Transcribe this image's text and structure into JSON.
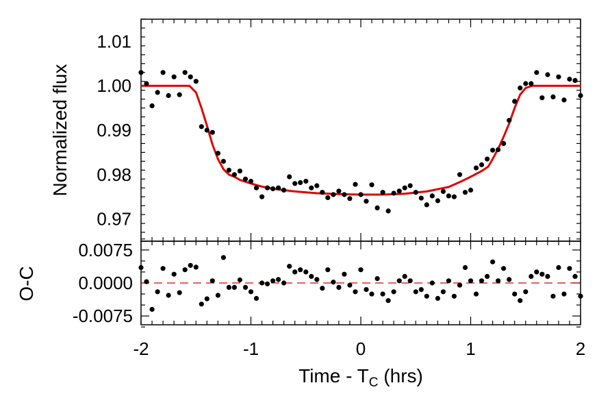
{
  "chart_data": [
    {
      "type": "scatter",
      "panel": "top",
      "xlim": [
        -2,
        2
      ],
      "ylim": [
        0.965,
        1.015
      ],
      "ylabel": "Normalized flux",
      "ytick_labels": [
        "0.97",
        "0.98",
        "0.99",
        "1.00",
        "1.01"
      ],
      "ytick_values": [
        0.97,
        0.98,
        0.99,
        1.0,
        1.01
      ],
      "colors": {
        "points": "#000000",
        "model": "#e00000"
      },
      "series": [
        {
          "kind": "points",
          "x": [
            -2.0,
            -1.95,
            -1.9,
            -1.85,
            -1.8,
            -1.75,
            -1.7,
            -1.65,
            -1.6,
            -1.55,
            -1.5,
            -1.45,
            -1.4,
            -1.35,
            -1.3,
            -1.25,
            -1.2,
            -1.15,
            -1.1,
            -1.05,
            -1.0,
            -0.95,
            -0.9,
            -0.85,
            -0.8,
            -0.75,
            -0.7,
            -0.65,
            -0.6,
            -0.55,
            -0.5,
            -0.45,
            -0.4,
            -0.35,
            -0.3,
            -0.25,
            -0.2,
            -0.15,
            -0.1,
            -0.05,
            0.0,
            0.05,
            0.1,
            0.15,
            0.2,
            0.25,
            0.3,
            0.35,
            0.4,
            0.45,
            0.5,
            0.55,
            0.6,
            0.65,
            0.7,
            0.75,
            0.8,
            0.85,
            0.9,
            0.95,
            1.0,
            1.05,
            1.1,
            1.15,
            1.2,
            1.25,
            1.3,
            1.35,
            1.4,
            1.45,
            1.5,
            1.55,
            1.6,
            1.65,
            1.7,
            1.75,
            1.8,
            1.85,
            1.9,
            1.95,
            2.0
          ],
          "y": [
            1.003,
            1.0005,
            0.9955,
            0.9985,
            1.003,
            0.9978,
            1.002,
            0.998,
            1.003,
            1.002,
            1.001,
            0.9908,
            0.99,
            0.9895,
            0.9848,
            0.983,
            0.981,
            0.98,
            0.9808,
            0.979,
            0.9785,
            0.977,
            0.975,
            0.977,
            0.9768,
            0.977,
            0.9765,
            0.9795,
            0.978,
            0.9782,
            0.9785,
            0.977,
            0.9775,
            0.976,
            0.9748,
            0.9755,
            0.9763,
            0.9755,
            0.9746,
            0.9778,
            0.9755,
            0.974,
            0.9777,
            0.9725,
            0.976,
            0.9718,
            0.9758,
            0.9763,
            0.977,
            0.9775,
            0.976,
            0.9747,
            0.9732,
            0.9752,
            0.9741,
            0.9762,
            0.9752,
            0.975,
            0.98,
            0.976,
            0.9765,
            0.9815,
            0.9822,
            0.9835,
            0.9855,
            0.9856,
            0.987,
            0.9922,
            0.9965,
            0.9995,
            1.0005,
            1.0005,
            1.003,
            0.9973,
            1.0025,
            0.9975,
            1.002,
            0.9968,
            1.0015,
            1.0012,
            0.9978
          ]
        },
        {
          "kind": "model-line",
          "x": [
            -2.0,
            -1.56,
            -1.5,
            -1.45,
            -1.4,
            -1.35,
            -1.3,
            -1.25,
            -1.2,
            -1.15,
            -1.1,
            -1.0,
            -0.9,
            -0.8,
            -0.6,
            -0.4,
            -0.2,
            0.0,
            0.2,
            0.4,
            0.6,
            0.8,
            0.9,
            1.0,
            1.1,
            1.16,
            1.2,
            1.25,
            1.3,
            1.35,
            1.4,
            1.45,
            1.5,
            1.56,
            2.0
          ],
          "y": [
            1.0,
            1.0,
            0.9985,
            0.995,
            0.991,
            0.9868,
            0.9835,
            0.9812,
            0.98,
            0.9795,
            0.9788,
            0.978,
            0.9773,
            0.9768,
            0.9762,
            0.9758,
            0.9756,
            0.9755,
            0.9755,
            0.9757,
            0.9762,
            0.9772,
            0.9783,
            0.9795,
            0.9808,
            0.9818,
            0.9835,
            0.9858,
            0.9885,
            0.9915,
            0.995,
            0.998,
            0.9995,
            1.0,
            1.0
          ]
        }
      ]
    },
    {
      "type": "scatter",
      "panel": "bottom",
      "xlim": [
        -2,
        2
      ],
      "ylim": [
        -0.0095,
        0.0095
      ],
      "xlabel": "Time - T",
      "xlabel_subscript": "C",
      "xlabel_suffix": " (hrs)",
      "ylabel": "O-C",
      "xtick_labels": [
        "-2",
        "-1",
        "0",
        "1",
        "2"
      ],
      "xtick_values": [
        -2,
        -1,
        0,
        1,
        2
      ],
      "ytick_labels": [
        "0.0075",
        "0.0000",
        "-0.0075"
      ],
      "ytick_values": [
        0.0075,
        0.0,
        -0.0075
      ],
      "colors": {
        "points": "#000000",
        "zero_line": "#d80000"
      },
      "series": [
        {
          "kind": "points",
          "x": [
            -2.0,
            -1.95,
            -1.9,
            -1.85,
            -1.8,
            -1.75,
            -1.7,
            -1.65,
            -1.6,
            -1.55,
            -1.5,
            -1.45,
            -1.4,
            -1.35,
            -1.3,
            -1.25,
            -1.2,
            -1.15,
            -1.1,
            -1.05,
            -1.0,
            -0.95,
            -0.9,
            -0.85,
            -0.8,
            -0.75,
            -0.7,
            -0.65,
            -0.6,
            -0.55,
            -0.5,
            -0.45,
            -0.4,
            -0.35,
            -0.3,
            -0.25,
            -0.2,
            -0.15,
            -0.1,
            -0.05,
            0.0,
            0.05,
            0.1,
            0.15,
            0.2,
            0.25,
            0.3,
            0.35,
            0.4,
            0.45,
            0.5,
            0.55,
            0.6,
            0.65,
            0.7,
            0.75,
            0.8,
            0.85,
            0.9,
            0.95,
            1.0,
            1.05,
            1.1,
            1.15,
            1.2,
            1.25,
            1.3,
            1.35,
            1.4,
            1.45,
            1.5,
            1.55,
            1.6,
            1.65,
            1.7,
            1.75,
            1.8,
            1.85,
            1.9,
            1.95,
            2.0
          ],
          "y": [
            0.0035,
            0.0003,
            -0.006,
            -0.002,
            0.0033,
            -0.0028,
            0.002,
            -0.0022,
            0.003,
            0.004,
            0.0036,
            -0.0048,
            -0.0036,
            0.0005,
            -0.0028,
            0.0058,
            -0.001,
            -0.001,
            0.0007,
            -0.001,
            -0.002,
            -0.0035,
            0.0,
            -0.0002,
            0.0005,
            0.0008,
            0.0,
            0.0038,
            0.0025,
            0.003,
            0.0025,
            0.0015,
            0.0008,
            -0.0012,
            0.003,
            0.0002,
            -0.001,
            0.002,
            -0.0005,
            -0.002,
            0.003,
            -0.0015,
            -0.0025,
            0.001,
            -0.0025,
            -0.004,
            -0.002,
            0.0005,
            0.0015,
            0.0005,
            -0.002,
            -0.0015,
            -0.003,
            0.0,
            -0.0035,
            -0.002,
            0.0005,
            -0.003,
            -0.0005,
            0.0035,
            0.0005,
            -0.0025,
            0.0005,
            0.0015,
            0.0048,
            0.0005,
            0.0033,
            0.0008,
            -0.0025,
            -0.004,
            -0.002,
            0.0015,
            0.0025,
            0.002,
            0.0015,
            -0.003,
            0.0035,
            -0.0025,
            0.0033,
            0.0015,
            -0.003
          ]
        },
        {
          "kind": "zero-line",
          "x": [
            -2,
            2
          ],
          "y": [
            0,
            0
          ]
        }
      ]
    }
  ]
}
